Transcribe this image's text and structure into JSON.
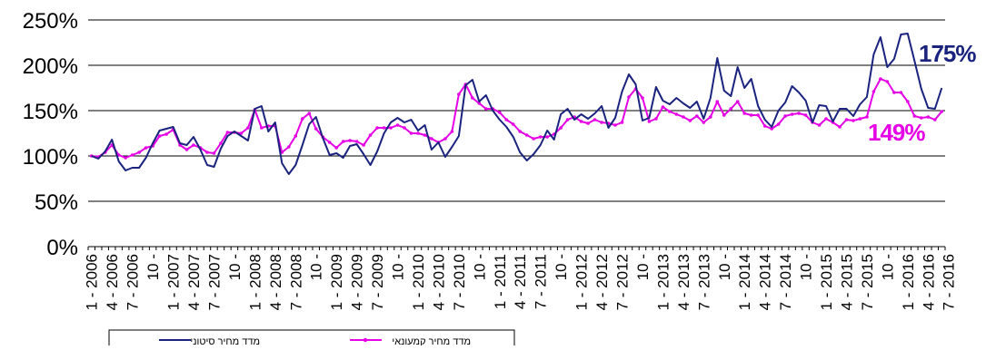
{
  "chart_data": {
    "type": "line",
    "title": "",
    "xlabel": "",
    "ylabel": "",
    "ylim": [
      0,
      250
    ],
    "y_ticks": [
      0,
      50,
      100,
      150,
      200,
      250
    ],
    "y_tick_format": "{v}%",
    "grid": "horizontal",
    "legend_placement": "bottom",
    "x_tick_labels": [
      "1 - 2006",
      "4 - 2006",
      "7 - 2006",
      "10 -",
      "1 - 2007",
      "4 - 2007",
      "7 - 2007",
      "10 -",
      "1 - 2008",
      "4 - 2008",
      "7 - 2008",
      "10 -",
      "1 - 2009",
      "4 - 2009",
      "7 - 2009",
      "10 -",
      "1 - 2010",
      "4 - 2010",
      "7 - 2010",
      "10 -",
      "1 - 2011",
      "4 - 2011",
      "7 - 2011",
      "10 -",
      "1 - 2012",
      "4 - 2012",
      "7 - 2012",
      "10 -",
      "1 - 2013",
      "4 - 2013",
      "7 - 2013",
      "10 -",
      "1 - 2014",
      "4 - 2014",
      "7 - 2014",
      "10 -",
      "1 - 2015",
      "4 - 2015",
      "7 - 2015",
      "10 -",
      "1 - 2016",
      "4 - 2016",
      "7 - 2016"
    ],
    "annotations": [
      {
        "text": "175%",
        "color": "#1a237e"
      },
      {
        "text": "149%",
        "color": "#e600e6"
      }
    ],
    "series": [
      {
        "name": "מדד מחיר סיטוני",
        "color": "#1a237e",
        "marker": "none",
        "values": [
          100,
          97,
          105,
          118,
          94,
          84,
          87,
          87,
          98,
          114,
          128,
          130,
          132,
          114,
          112,
          121,
          107,
          90,
          88,
          108,
          122,
          127,
          122,
          117,
          152,
          155,
          127,
          137,
          92,
          80,
          90,
          112,
          135,
          143,
          120,
          101,
          103,
          98,
          111,
          113,
          102,
          90,
          105,
          125,
          137,
          142,
          137,
          140,
          128,
          134,
          107,
          115,
          99,
          110,
          122,
          178,
          184,
          160,
          167,
          150,
          140,
          132,
          121,
          104,
          95,
          102,
          112,
          128,
          118,
          146,
          152,
          140,
          146,
          141,
          147,
          155,
          131,
          142,
          171,
          190,
          179,
          139,
          142,
          176,
          161,
          157,
          164,
          158,
          153,
          160,
          141,
          164,
          208,
          172,
          166,
          198,
          175,
          185,
          155,
          140,
          132,
          150,
          159,
          177,
          170,
          161,
          137,
          156,
          155,
          138,
          152,
          152,
          144,
          157,
          165,
          212,
          231,
          198,
          207,
          234,
          235,
          205,
          174,
          153,
          152,
          175
        ]
      },
      {
        "name": "מדד מחיר קמעונאי",
        "color": "#e600e6",
        "marker": "dot",
        "values": [
          100,
          99,
          104,
          112,
          101,
          98,
          101,
          104,
          109,
          111,
          122,
          124,
          129,
          112,
          107,
          112,
          109,
          104,
          103,
          114,
          126,
          126,
          125,
          131,
          151,
          131,
          133,
          133,
          104,
          110,
          122,
          141,
          147,
          130,
          121,
          115,
          109,
          116,
          117,
          116,
          112,
          123,
          131,
          131,
          131,
          134,
          131,
          125,
          125,
          123,
          119,
          115,
          119,
          127,
          168,
          179,
          164,
          158,
          152,
          152,
          148,
          140,
          135,
          127,
          123,
          119,
          121,
          121,
          124,
          131,
          140,
          143,
          138,
          136,
          140,
          137,
          136,
          134,
          137,
          165,
          174,
          164,
          138,
          141,
          154,
          149,
          146,
          143,
          139,
          144,
          137,
          143,
          160,
          145,
          152,
          160,
          147,
          145,
          145,
          133,
          130,
          135,
          144,
          146,
          147,
          145,
          137,
          134,
          141,
          137,
          132,
          140,
          139,
          141,
          143,
          171,
          185,
          182,
          170,
          170,
          160,
          144,
          142,
          143,
          140,
          149
        ]
      }
    ]
  }
}
